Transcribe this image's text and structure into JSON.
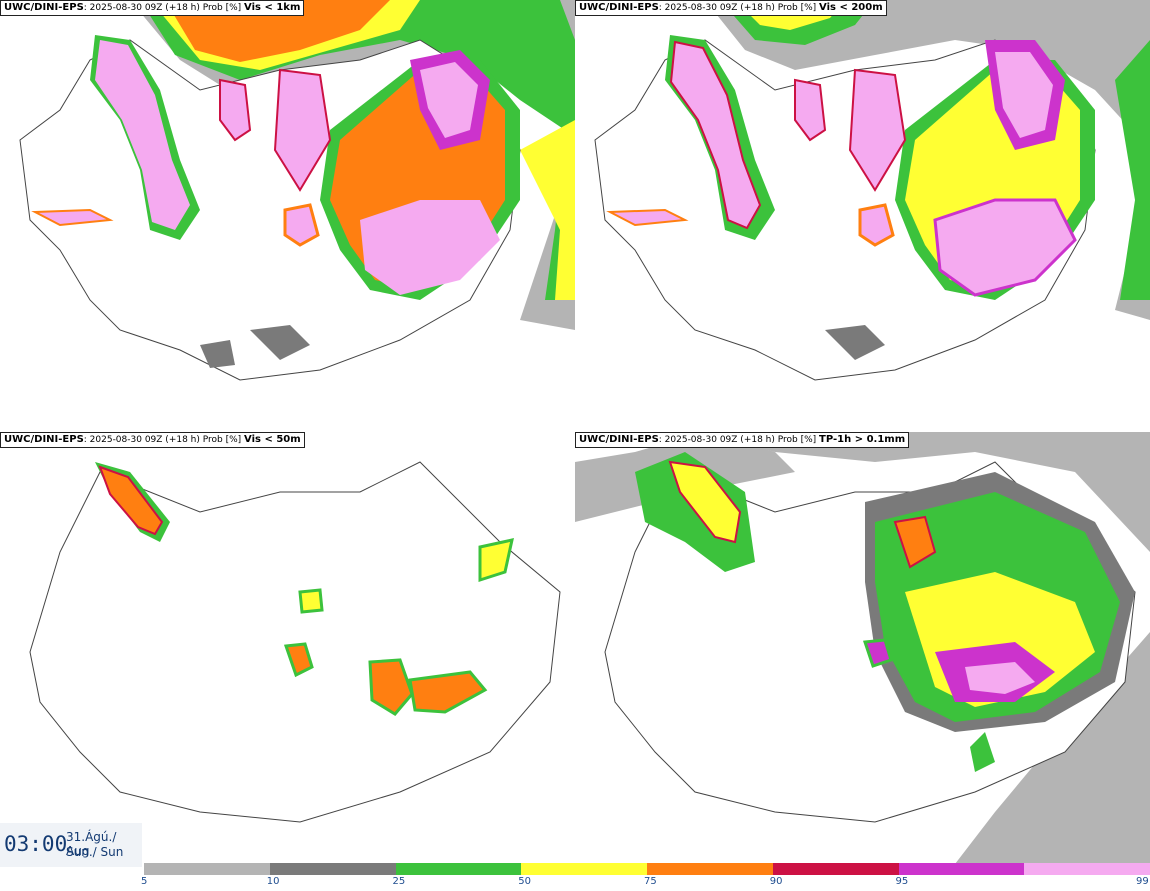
{
  "panels": [
    {
      "source": "UWC/DINI-EPS",
      "meta": ": 2025-08-30 09Z (+18 h) Prob [%]",
      "variable": "Vis < 1km"
    },
    {
      "source": "UWC/DINI-EPS",
      "meta": ": 2025-08-30 09Z (+18 h) Prob [%]",
      "variable": "Vis < 200m"
    },
    {
      "source": "UWC/DINI-EPS",
      "meta": ": 2025-08-30 09Z (+18 h) Prob [%]",
      "variable": "Vis < 50m"
    },
    {
      "source": "UWC/DINI-EPS",
      "meta": ": 2025-08-30 09Z (+18 h) Prob [%]",
      "variable": "TP-1h > 0.1mm"
    }
  ],
  "time": "03:00",
  "date_line1": "31.Ágú./ Aug",
  "date_line2": "Sun./ Sun",
  "colorbar": {
    "ticks": [
      "5",
      "10",
      "25",
      "50",
      "75",
      "90",
      "95",
      "99"
    ],
    "colors": [
      "#b4b4b4",
      "#7a7a7a",
      "#3cc23c",
      "#ffff33",
      "#ff7f11",
      "#cc1144",
      "#cc33cc",
      "#f5aaf0"
    ]
  }
}
